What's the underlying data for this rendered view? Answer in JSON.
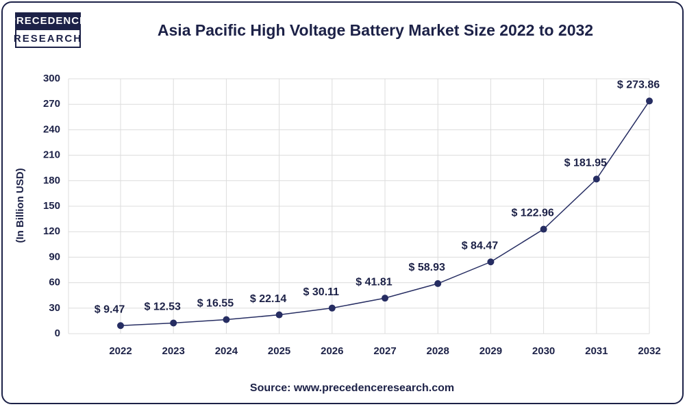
{
  "chart_data": {
    "type": "line",
    "title": "Asia Pacific High Voltage Battery Market Size 2022 to 2032",
    "logo": [
      "PRECEDENCE",
      "RESEARCH"
    ],
    "ylabel": "(In Billion USD)",
    "source": "Source: www.precedenceresearch.com",
    "categories": [
      "2022",
      "2023",
      "2024",
      "2025",
      "2026",
      "2027",
      "2028",
      "2029",
      "2030",
      "2031",
      "2032"
    ],
    "values": [
      9.47,
      12.53,
      16.55,
      22.14,
      30.11,
      41.81,
      58.93,
      84.47,
      122.96,
      181.95,
      273.86
    ],
    "value_labels": [
      "$ 9.47",
      "$ 12.53",
      "$ 16.55",
      "$ 22.14",
      "$ 30.11",
      "$ 41.81",
      "$ 58.93",
      "$ 84.47",
      "$ 122.96",
      "$ 181.95",
      "$ 273.86"
    ],
    "color": "#262d62",
    "ylim": [
      0,
      300
    ],
    "yticks": [
      0,
      30,
      60,
      90,
      120,
      150,
      180,
      210,
      240,
      270,
      300
    ],
    "grid": true
  }
}
